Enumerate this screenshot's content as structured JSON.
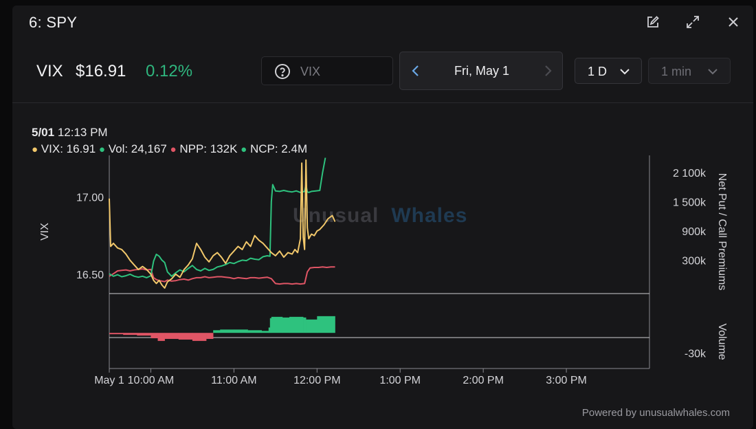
{
  "window": {
    "title": "6: SPY",
    "icons": [
      "edit-icon",
      "expand-icon",
      "close-icon"
    ]
  },
  "quote": {
    "symbol": "VIX",
    "price": "$16.91",
    "change": "0.12%",
    "change_color": "#2fb67e"
  },
  "search": {
    "placeholder": "VIX",
    "value": ""
  },
  "date_nav": {
    "label": "Fri, May 1"
  },
  "period_select": {
    "selected": "1 D"
  },
  "interval_select": {
    "selected": "1 min"
  },
  "tooltip": {
    "date": "5/01",
    "time": " 12:13 PM",
    "vix": "VIX: 16.91",
    "vol": "Vol: 24,167",
    "npp": "NPP: 132K",
    "ncp": "NCP: 2.4M"
  },
  "watermark": {
    "part1": "Unusual",
    "part2": "Whales"
  },
  "credit": "Powered by unusualwhales.com",
  "colors": {
    "vix": "#f2c86b",
    "ncp": "#2ec27e",
    "npp": "#e05565",
    "axis": "#9a9aa0",
    "grid": "#cfcfd4"
  },
  "chart_data": {
    "type": "line",
    "left_axis": {
      "label": "VIX",
      "ticks": [
        "17.00",
        "16.50"
      ]
    },
    "right_axis": {
      "label": "Net Put / Call Premiums",
      "ticks": [
        "2 100k",
        "1 500k",
        "900k",
        "300k"
      ]
    },
    "volume_axis": {
      "label": "Volume",
      "ticks": [
        "-30k"
      ]
    },
    "x_ticks": [
      "May 1",
      "10:00 AM",
      "11:00 AM",
      "12:00 PM",
      "1:00 PM",
      "2:00 PM",
      "3:00 PM"
    ],
    "x_range_minutes": [
      570,
      960
    ],
    "y_range": [
      16.37,
      17.27
    ],
    "premium_range": [
      -400000,
      2450000
    ],
    "volume_range": [
      -45000,
      30000
    ],
    "series": [
      {
        "name": "VIX",
        "color": "#f2c86b",
        "x": [
          570,
          571,
          573,
          576,
          579,
          582,
          585,
          588,
          591,
          594,
          597,
          600,
          602,
          604,
          606,
          608,
          610,
          612,
          615,
          618,
          621,
          624,
          627,
          630,
          633,
          636,
          639,
          642,
          645,
          648,
          651,
          654,
          657,
          660,
          663,
          666,
          669,
          672,
          675,
          678,
          681,
          684,
          687,
          690,
          693,
          696,
          699,
          702,
          704,
          706,
          708,
          709,
          710,
          711,
          712,
          713,
          714,
          716,
          718,
          720,
          722,
          725,
          728,
          731,
          733
        ],
        "values": [
          16.99,
          16.68,
          16.7,
          16.67,
          16.66,
          16.63,
          16.59,
          16.56,
          16.53,
          16.55,
          16.53,
          16.5,
          16.46,
          16.44,
          16.46,
          16.43,
          16.41,
          16.45,
          16.47,
          16.5,
          16.48,
          16.53,
          16.56,
          16.6,
          16.7,
          16.66,
          16.61,
          16.58,
          16.62,
          16.64,
          16.61,
          16.57,
          16.62,
          16.65,
          16.68,
          16.66,
          16.71,
          16.68,
          16.75,
          16.72,
          16.7,
          16.67,
          16.64,
          16.62,
          16.65,
          16.61,
          16.64,
          16.63,
          16.66,
          16.64,
          16.73,
          17.22,
          16.74,
          16.66,
          17.24,
          16.8,
          16.73,
          16.76,
          16.75,
          16.78,
          16.79,
          16.82,
          16.86,
          16.88,
          16.84
        ]
      },
      {
        "name": "NCP",
        "color": "#2ec27e",
        "x": [
          570,
          573,
          576,
          579,
          582,
          585,
          588,
          591,
          594,
          597,
          600,
          602,
          604,
          606,
          608,
          610,
          612,
          615,
          618,
          621,
          624,
          627,
          630,
          633,
          636,
          639,
          642,
          645,
          648,
          651,
          654,
          657,
          660,
          663,
          666,
          669,
          672,
          675,
          678,
          681,
          684,
          686,
          687,
          688,
          690,
          693,
          696,
          699,
          702,
          705,
          708,
          711,
          712,
          713,
          714,
          716,
          719,
          722,
          724,
          726
        ],
        "values": [
          20000,
          -30000,
          0,
          -40000,
          -20000,
          10000,
          -30000,
          -50000,
          -30000,
          -60000,
          -20000,
          280000,
          420000,
          380000,
          300000,
          250000,
          60000,
          -30000,
          40000,
          100000,
          60000,
          130000,
          190000,
          110000,
          80000,
          130000,
          90000,
          110000,
          160000,
          180000,
          210000,
          250000,
          230000,
          270000,
          300000,
          290000,
          340000,
          320000,
          310000,
          370000,
          390000,
          380000,
          1500000,
          1850000,
          1720000,
          1710000,
          1730000,
          1710000,
          1700000,
          1720000,
          1690000,
          1710000,
          1850000,
          1700000,
          1690000,
          1710000,
          1720000,
          1730000,
          2100000,
          2400000
        ]
      },
      {
        "name": "NPP",
        "color": "#e05565",
        "x": [
          570,
          573,
          576,
          579,
          582,
          585,
          588,
          591,
          594,
          597,
          600,
          602,
          604,
          606,
          608,
          610,
          612,
          615,
          618,
          621,
          624,
          627,
          630,
          633,
          636,
          639,
          642,
          645,
          648,
          651,
          654,
          657,
          660,
          663,
          666,
          669,
          672,
          675,
          678,
          681,
          684,
          687,
          690,
          693,
          696,
          699,
          702,
          705,
          708,
          711,
          713,
          715,
          718,
          721,
          724,
          727,
          730,
          733
        ],
        "values": [
          -30000,
          20000,
          80000,
          90000,
          100000,
          80000,
          100000,
          110000,
          120000,
          100000,
          110000,
          -60000,
          -100000,
          -120000,
          -130000,
          -140000,
          -110000,
          -130000,
          -120000,
          -100000,
          -90000,
          -110000,
          -80000,
          -60000,
          -60000,
          -40000,
          -60000,
          -50000,
          -40000,
          -40000,
          -50000,
          -60000,
          -80000,
          -60000,
          -70000,
          -80000,
          -60000,
          -60000,
          -70000,
          -60000,
          -50000,
          -80000,
          -180000,
          -190000,
          -180000,
          -180000,
          -190000,
          -180000,
          -190000,
          -180000,
          60000,
          140000,
          150000,
          150000,
          160000,
          150000,
          160000,
          160000
        ]
      },
      {
        "name": "Vol",
        "type": "area",
        "x": [
          570,
          580,
          590,
          600,
          605,
          610,
          620,
          630,
          640,
          645,
          650,
          660,
          670,
          680,
          685,
          686,
          687,
          695,
          700,
          710,
          712,
          720,
          733
        ],
        "values": [
          -2000,
          -3000,
          -4000,
          -8000,
          -12000,
          -9000,
          -10000,
          -12000,
          -9000,
          4000,
          5000,
          5000,
          4000,
          3000,
          8000,
          22000,
          24000,
          23000,
          24000,
          23000,
          20000,
          25000,
          26000
        ]
      }
    ]
  }
}
